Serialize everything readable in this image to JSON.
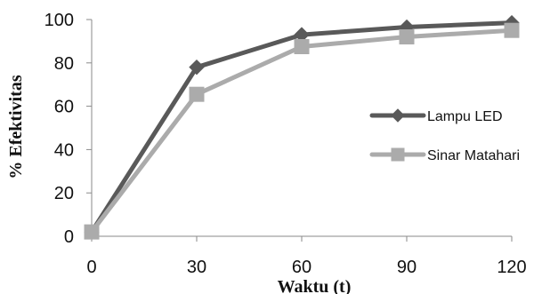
{
  "chart_data": {
    "type": "line",
    "title": "",
    "xlabel": "Waktu (t)",
    "ylabel": "% Efektivitas",
    "x": [
      0,
      30,
      60,
      90,
      120
    ],
    "x_tick_labels": [
      "0",
      "30",
      "60",
      "90",
      "120"
    ],
    "y_tick_labels": [
      "0",
      "20",
      "40",
      "60",
      "80",
      "100"
    ],
    "xlim": [
      0,
      120
    ],
    "ylim": [
      0,
      100
    ],
    "grid": false,
    "legend_position": "right",
    "series": [
      {
        "name": "Lampu LED",
        "values": [
          2,
          78,
          93,
          96.5,
          98.5
        ],
        "color": "#595959",
        "marker": "diamond"
      },
      {
        "name": "Sinar Matahari",
        "values": [
          2,
          65.5,
          87.5,
          92,
          95
        ],
        "color": "#ababab",
        "marker": "square"
      }
    ]
  }
}
